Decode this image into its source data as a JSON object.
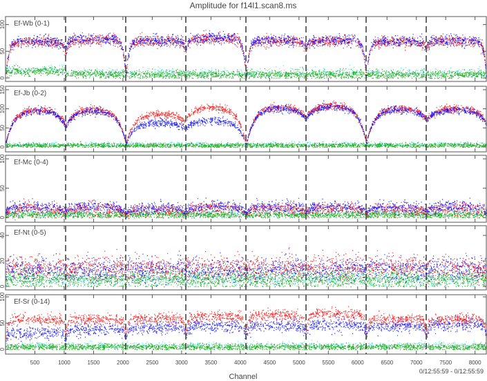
{
  "title": "Amplitude for f14l1.scan8.ms",
  "xlabel": "Channel",
  "time_range": "0/12:55:59 - 0/12:55:59",
  "chart_data": [
    {
      "type": "scatter",
      "label": "Ef-Wb (0-1)",
      "ylim": [
        -6.5,
        115
      ],
      "yticks": [
        0,
        50,
        100
      ],
      "xlim": [
        0,
        8192
      ],
      "subband_width": 1024,
      "edge_floor": [
        0.0,
        0.7,
        0.0,
        0.75,
        0.0,
        0.8,
        0.0,
        0.8,
        0.0
      ],
      "edge_width": 45,
      "series": [
        {
          "name": "cyan",
          "color": "#40e0e0",
          "levels": [
            16,
            11,
            11,
            11,
            11,
            11,
            11,
            11
          ],
          "sd": 4,
          "edge": false,
          "n": 90
        },
        {
          "name": "green",
          "color": "#00a000",
          "levels": [
            13,
            8,
            7,
            7,
            7,
            7,
            7,
            7
          ],
          "sd": 4,
          "edge": false,
          "n": 260
        },
        {
          "name": "red",
          "color": "#ff0000",
          "levels": [
            68,
            72,
            70,
            74,
            70,
            70,
            68,
            70
          ],
          "sd": 5,
          "edge": true,
          "n": 260
        },
        {
          "name": "blue",
          "color": "#0000ff",
          "levels": [
            69,
            73,
            71,
            75,
            71,
            71,
            69,
            71
          ],
          "sd": 5,
          "edge": true,
          "n": 260
        }
      ]
    },
    {
      "type": "scatter",
      "label": "Ef-Jb (0-2)",
      "ylim": [
        -12.7,
        159
      ],
      "yticks": [
        0,
        50,
        100,
        150
      ],
      "xlim": [
        0,
        8192
      ],
      "subband_width": 1024,
      "edge_floor": [
        0.1,
        0.55,
        0.1,
        0.7,
        0.05,
        0.7,
        0.1,
        0.7,
        0.6
      ],
      "edge_width": 130,
      "series": [
        {
          "name": "cyan",
          "color": "#40e0e0",
          "levels": [
            9,
            9,
            9,
            9,
            9,
            9,
            9,
            9
          ],
          "sd": 3,
          "edge": false,
          "n": 80
        },
        {
          "name": "green",
          "color": "#00a000",
          "levels": [
            5,
            5,
            5,
            5,
            5,
            5,
            5,
            5
          ],
          "sd": 3,
          "edge": false,
          "n": 260
        },
        {
          "name": "red",
          "color": "#ff0000",
          "levels": [
            100,
            100,
            88,
            105,
            106,
            110,
            103,
            102
          ],
          "sd": 5,
          "edge": true,
          "n": 260
        },
        {
          "name": "blue",
          "color": "#0000ff",
          "levels": [
            97,
            97,
            65,
            72,
            103,
            108,
            100,
            98
          ],
          "sd": 5,
          "edge": true,
          "n": 260
        }
      ]
    },
    {
      "type": "scatter",
      "label": "Ef-Mc (0-4)",
      "ylim": [
        -8,
        106
      ],
      "yticks": [
        0,
        50,
        100
      ],
      "xlim": [
        0,
        8192
      ],
      "subband_width": 1024,
      "edge_floor": [
        0.5,
        0.6,
        0.4,
        0.6,
        0.4,
        0.6,
        0.5,
        0.6,
        0.6
      ],
      "edge_width": 80,
      "series": [
        {
          "name": "cyan",
          "color": "#40e0e0",
          "levels": [
            9,
            9,
            9,
            9,
            9,
            9,
            9,
            9
          ],
          "sd": 3,
          "edge": false,
          "n": 80
        },
        {
          "name": "green",
          "color": "#00a000",
          "levels": [
            5,
            5,
            5,
            5,
            5,
            5,
            5,
            5
          ],
          "sd": 3,
          "edge": false,
          "n": 260
        },
        {
          "name": "red",
          "color": "#ff0000",
          "levels": [
            16,
            16,
            14,
            17,
            16,
            16,
            15,
            16
          ],
          "sd": 5,
          "edge": true,
          "n": 220
        },
        {
          "name": "blue",
          "color": "#0000ff",
          "levels": [
            19,
            19,
            17,
            20,
            19,
            19,
            18,
            19
          ],
          "sd": 5,
          "edge": true,
          "n": 220
        }
      ]
    },
    {
      "type": "scatter",
      "label": "Ef-Nt (0-5)",
      "ylim": [
        -2.7,
        47.6
      ],
      "yticks": [
        0,
        20,
        40
      ],
      "xlim": [
        0,
        8192
      ],
      "subband_width": 1024,
      "edge_floor": [
        1,
        1,
        1,
        1,
        1,
        1,
        1,
        1,
        1
      ],
      "edge_width": 50,
      "series": [
        {
          "name": "cyan",
          "color": "#40e0e0",
          "levels": [
            6,
            6,
            6,
            6,
            6,
            6,
            6,
            6
          ],
          "sd": 3,
          "edge": false,
          "n": 150
        },
        {
          "name": "green",
          "color": "#00a000",
          "levels": [
            6,
            6,
            6,
            6,
            6,
            6,
            6,
            6
          ],
          "sd": 3.5,
          "edge": false,
          "n": 260
        },
        {
          "name": "red",
          "color": "#ff0000",
          "levels": [
            15,
            15,
            15,
            15,
            15,
            15,
            15,
            15
          ],
          "sd": 4.5,
          "edge": false,
          "n": 220
        },
        {
          "name": "blue",
          "color": "#0000ff",
          "levels": [
            14,
            14,
            14,
            14,
            14,
            14,
            14,
            14
          ],
          "sd": 4.5,
          "edge": false,
          "n": 220
        }
      ]
    },
    {
      "type": "scatter",
      "label": "Ef-Sr (0-14)",
      "ylim": [
        -9,
        104
      ],
      "yticks": [
        0,
        50,
        100
      ],
      "xlim": [
        0,
        8192
      ],
      "xticks": [
        500,
        1000,
        1500,
        2000,
        2500,
        3000,
        3500,
        4000,
        4500,
        5000,
        5500,
        6000,
        6500,
        7000,
        7500,
        8000
      ],
      "subband_width": 1024,
      "edge_floor": [
        0.4,
        0.5,
        0.45,
        0.5,
        0.5,
        0.5,
        0.5,
        0.5,
        0.5
      ],
      "edge_width": 30,
      "series": [
        {
          "name": "cyan",
          "color": "#40e0e0",
          "levels": [
            9,
            9,
            9,
            9,
            9,
            9,
            9,
            9
          ],
          "sd": 3,
          "edge": false,
          "n": 80
        },
        {
          "name": "green",
          "color": "#00a000",
          "levels": [
            5,
            5,
            5,
            5,
            5,
            5,
            5,
            5
          ],
          "sd": 3,
          "edge": false,
          "n": 260
        },
        {
          "name": "blue",
          "color": "#0000ff",
          "levels": [
            32,
            38,
            42,
            44,
            46,
            47,
            45,
            48
          ],
          "sd": 6,
          "edge": true,
          "n": 240
        },
        {
          "name": "red",
          "color": "#ff0000",
          "levels": [
            57,
            57,
            60,
            63,
            66,
            68,
            58,
            58
          ],
          "sd": 5,
          "edge": true,
          "n": 240
        }
      ]
    }
  ]
}
